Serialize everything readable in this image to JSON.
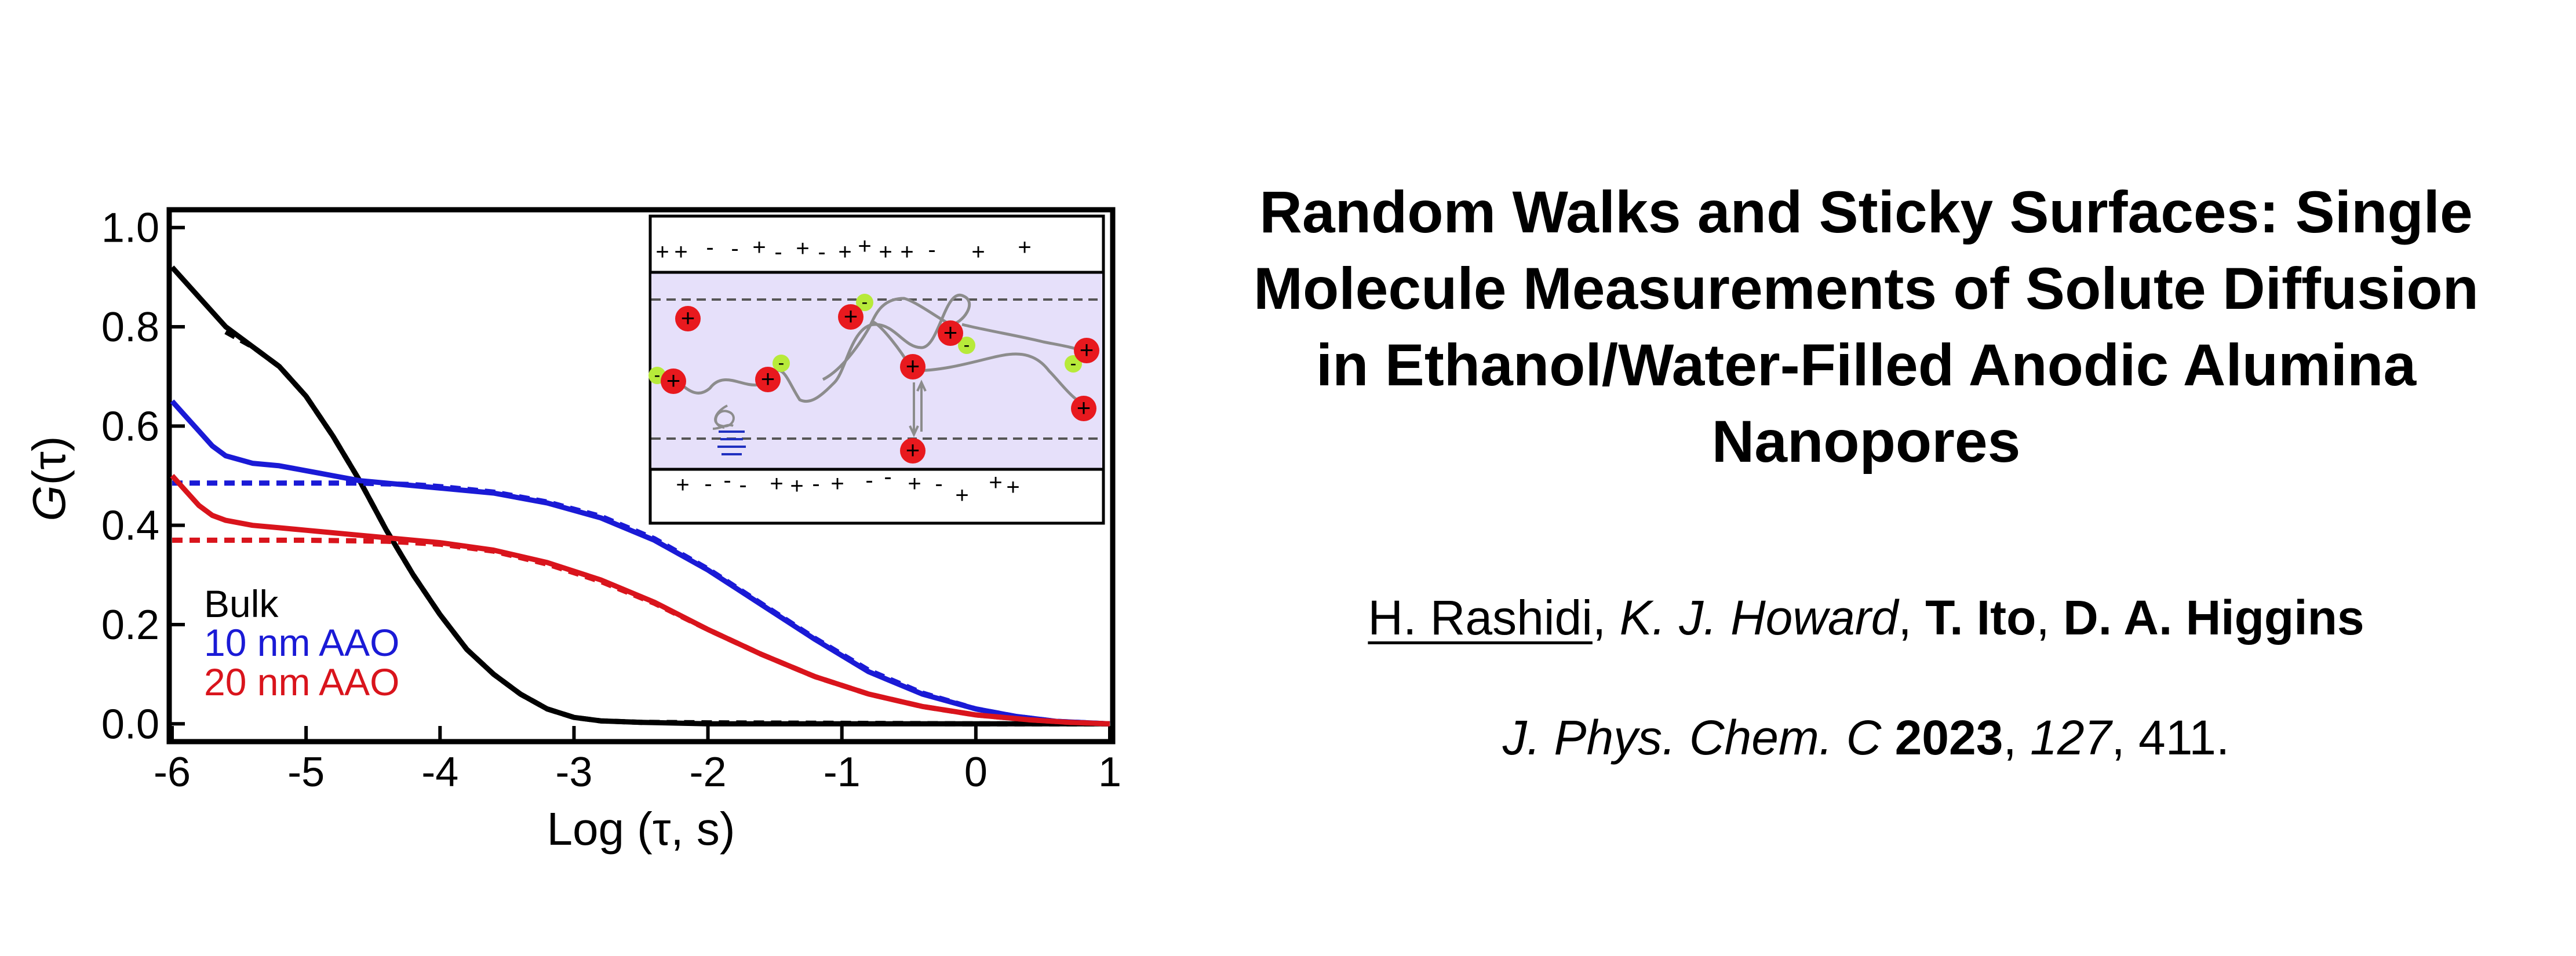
{
  "paper": {
    "title_lines": [
      "Random Walks and Sticky Surfaces: Single",
      "Molecule Measurements of Solute Diffusion",
      "in Ethanol/Water-Filled Anodic Alumina",
      "Nanopores"
    ],
    "authors": [
      {
        "name": "H. Rashidi",
        "style": "underline"
      },
      {
        "name": "K. J. Howard",
        "style": "italic"
      },
      {
        "name": "T. Ito",
        "style": "bold"
      },
      {
        "name": "D. A. Higgins",
        "style": "bold"
      }
    ],
    "author_separator": ", ",
    "citation": {
      "journal": "J. Phys. Chem. C",
      "year": "2023",
      "volume": "127",
      "pages": ", 411."
    }
  },
  "chart_data": {
    "type": "line",
    "title": "",
    "xlabel": "Log (τ, s)",
    "ylabel_prefix": "G",
    "ylabel_arg": "(τ)",
    "xlim": [
      -6,
      1
    ],
    "ylim": [
      -0.03,
      1.03
    ],
    "x_ticks": [
      -6,
      -5,
      -4,
      -3,
      -2,
      -1,
      0,
      1
    ],
    "x_tick_labels": [
      "-6",
      "-5",
      "-4",
      "-3",
      "-2",
      "-1",
      "0",
      "1"
    ],
    "y_ticks": [
      0.0,
      0.2,
      0.4,
      0.6,
      0.8,
      1.0
    ],
    "y_tick_labels": [
      "0.0",
      "0.2",
      "0.4",
      "0.6",
      "0.8",
      "1.0"
    ],
    "grid": false,
    "legend_position": "lower-left",
    "series": [
      {
        "name": "Bulk",
        "color": "#000000",
        "x": [
          -6.0,
          -5.8,
          -5.6,
          -5.4,
          -5.2,
          -5.0,
          -4.8,
          -4.6,
          -4.4,
          -4.2,
          -4.0,
          -3.8,
          -3.6,
          -3.4,
          -3.2,
          -3.0,
          -2.8,
          -2.5,
          -2.0,
          -1.0,
          0.0,
          1.0
        ],
        "y": [
          0.92,
          0.86,
          0.8,
          0.76,
          0.72,
          0.66,
          0.58,
          0.49,
          0.39,
          0.3,
          0.22,
          0.15,
          0.1,
          0.06,
          0.03,
          0.013,
          0.006,
          0.003,
          0.0,
          0.0,
          0.0,
          0.0
        ],
        "fit_x": [
          -5.6,
          -5.4,
          -5.2,
          -5.0,
          -4.8,
          -4.6,
          -4.4,
          -4.2,
          -4.0,
          -3.8,
          -3.6,
          -3.4,
          -3.2,
          -3.0,
          -2.8,
          -2.5,
          -2.0,
          -1.0,
          0.0,
          1.0
        ],
        "fit_y": [
          0.79,
          0.76,
          0.72,
          0.66,
          0.58,
          0.49,
          0.39,
          0.3,
          0.22,
          0.15,
          0.1,
          0.06,
          0.03,
          0.013,
          0.006,
          0.003,
          0.002,
          0.001,
          0.0,
          0.0
        ]
      },
      {
        "name": "10 nm AAO",
        "color": "#1a1ad6",
        "x": [
          -6.0,
          -5.9,
          -5.8,
          -5.7,
          -5.6,
          -5.4,
          -5.2,
          -5.0,
          -4.9,
          -4.8,
          -4.6,
          -4.4,
          -4.2,
          -4.0,
          -3.6,
          -3.2,
          -2.8,
          -2.4,
          -2.0,
          -1.6,
          -1.2,
          -0.8,
          -0.4,
          0.0,
          0.3,
          0.6,
          1.0
        ],
        "y": [
          0.65,
          0.62,
          0.59,
          0.56,
          0.54,
          0.525,
          0.52,
          0.51,
          0.505,
          0.5,
          0.49,
          0.485,
          0.48,
          0.475,
          0.465,
          0.445,
          0.415,
          0.37,
          0.31,
          0.24,
          0.17,
          0.105,
          0.06,
          0.03,
          0.015,
          0.005,
          0.0
        ],
        "fit_x": [
          -6.0,
          -5.0,
          -4.6,
          -4.2,
          -4.0,
          -3.6,
          -3.2,
          -2.8,
          -2.4,
          -2.0,
          -1.6,
          -1.2,
          -0.8,
          -0.4,
          0.0,
          0.3,
          0.6,
          1.0
        ],
        "fit_y": [
          0.485,
          0.485,
          0.485,
          0.482,
          0.478,
          0.467,
          0.447,
          0.418,
          0.373,
          0.312,
          0.242,
          0.172,
          0.108,
          0.062,
          0.03,
          0.015,
          0.005,
          0.0
        ]
      },
      {
        "name": "20 nm AAO",
        "color": "#d9141c",
        "x": [
          -6.0,
          -5.9,
          -5.8,
          -5.7,
          -5.6,
          -5.4,
          -5.2,
          -5.0,
          -4.8,
          -4.6,
          -4.4,
          -4.2,
          -4.0,
          -3.6,
          -3.2,
          -2.8,
          -2.4,
          -2.0,
          -1.6,
          -1.2,
          -0.8,
          -0.4,
          0.0,
          0.4,
          0.7,
          1.0
        ],
        "y": [
          0.5,
          0.47,
          0.44,
          0.42,
          0.41,
          0.4,
          0.395,
          0.39,
          0.385,
          0.38,
          0.375,
          0.37,
          0.365,
          0.35,
          0.325,
          0.29,
          0.245,
          0.19,
          0.14,
          0.095,
          0.06,
          0.035,
          0.018,
          0.008,
          0.003,
          0.0
        ],
        "fit_x": [
          -6.0,
          -5.0,
          -4.4,
          -4.0,
          -3.6,
          -3.2,
          -2.8,
          -2.4,
          -2.0,
          -1.6,
          -1.2,
          -0.8,
          -0.4,
          0.0,
          0.4,
          0.7,
          1.0
        ],
        "fit_y": [
          0.37,
          0.37,
          0.368,
          0.362,
          0.348,
          0.322,
          0.287,
          0.243,
          0.19,
          0.14,
          0.095,
          0.06,
          0.035,
          0.018,
          0.008,
          0.003,
          0.0
        ]
      }
    ],
    "inset": {
      "top_wall_charges": [
        "+",
        "+",
        "-",
        "-",
        "+",
        "-",
        "+",
        "-",
        "+",
        "+",
        "+",
        "+",
        "-",
        "+",
        "+"
      ],
      "bottom_wall_charges": [
        "+",
        "-",
        "-",
        "-",
        "+",
        "+",
        "-",
        "+",
        "-",
        "-",
        "+",
        "-",
        "+",
        "+",
        "+"
      ],
      "molecule_charge": "+",
      "counter_charge": "-",
      "pore_fill": "#e6e0fa",
      "molecule_color": "#e8191e",
      "counter_color": "#b7ea3a"
    }
  }
}
